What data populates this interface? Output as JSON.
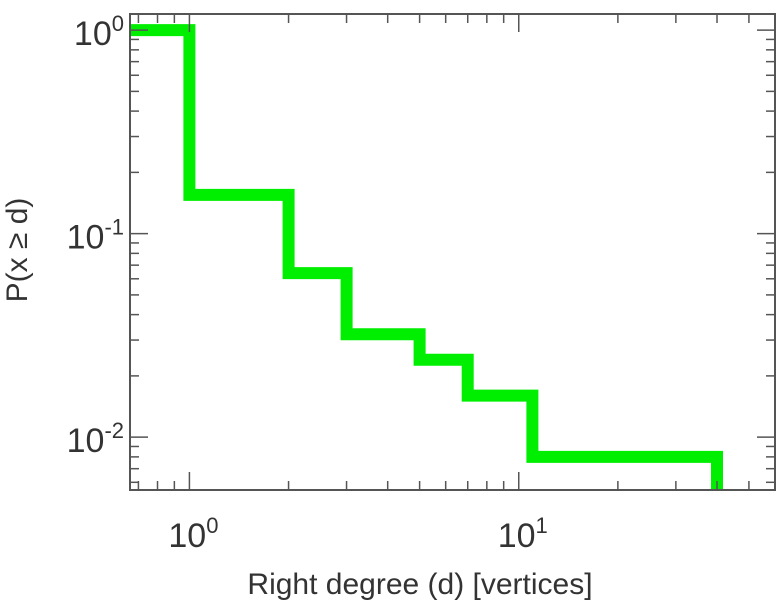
{
  "chart_data": {
    "type": "line",
    "step": true,
    "xlabel": "Right degree (d) [vertices]",
    "ylabel": "P(x ≥ d)",
    "xscale": "log",
    "yscale": "log",
    "xlim": [
      0.66,
      60
    ],
    "ylim": [
      0.0055,
      1.2
    ],
    "x_ticks": [
      {
        "value": 1,
        "base": "10",
        "exp": "0"
      },
      {
        "value": 10,
        "base": "10",
        "exp": "1"
      }
    ],
    "y_ticks": [
      {
        "value": 1,
        "base": "10",
        "exp": "0"
      },
      {
        "value": 0.1,
        "base": "10",
        "exp": "-1"
      },
      {
        "value": 0.01,
        "base": "10",
        "exp": "-2"
      }
    ],
    "grid": false,
    "series": [
      {
        "color": "#00ee00",
        "points": [
          [
            0.66,
            1.0
          ],
          [
            1,
            1.0
          ],
          [
            1,
            0.155
          ],
          [
            2,
            0.155
          ],
          [
            2,
            0.064
          ],
          [
            3,
            0.064
          ],
          [
            3,
            0.032
          ],
          [
            5,
            0.032
          ],
          [
            5,
            0.024
          ],
          [
            7,
            0.024
          ],
          [
            7,
            0.016
          ],
          [
            11,
            0.016
          ],
          [
            11,
            0.008
          ],
          [
            40,
            0.008
          ],
          [
            40,
            0.0055
          ]
        ]
      }
    ]
  }
}
